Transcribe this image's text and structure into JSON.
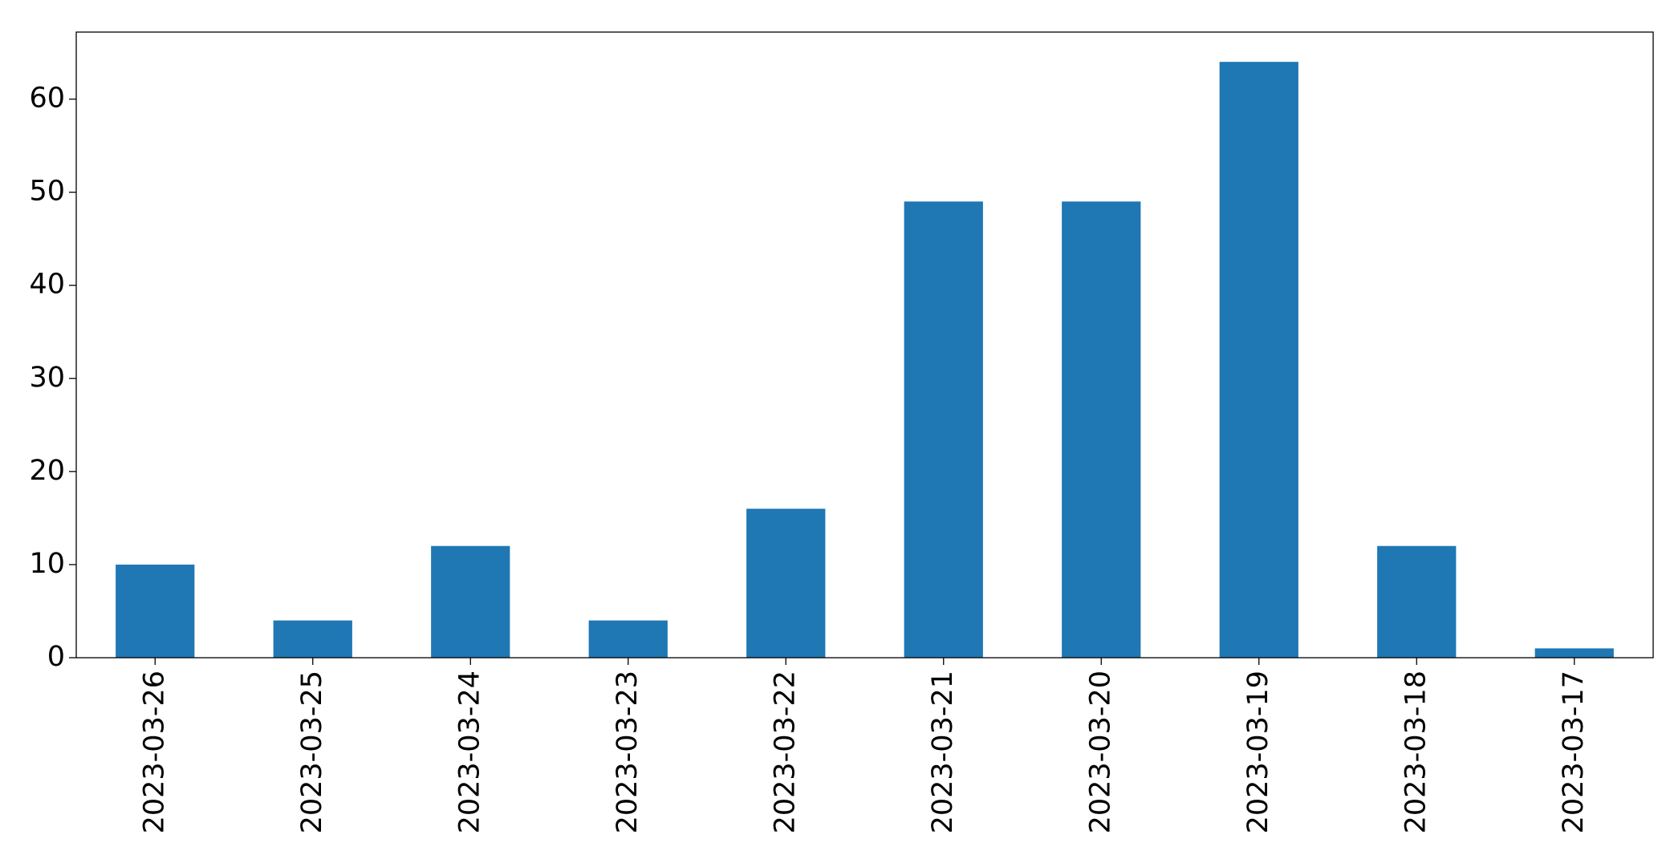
{
  "chart_data": {
    "type": "bar",
    "categories": [
      "2023-03-26",
      "2023-03-25",
      "2023-03-24",
      "2023-03-23",
      "2023-03-22",
      "2023-03-21",
      "2023-03-20",
      "2023-03-19",
      "2023-03-18",
      "2023-03-17"
    ],
    "values": [
      10,
      4,
      12,
      4,
      16,
      49,
      49,
      64,
      12,
      1
    ],
    "color": "#1f77b4",
    "ylim": [
      0,
      67.2
    ],
    "yticks": [
      0,
      10,
      20,
      30,
      40,
      50,
      60
    ],
    "grid": false
  }
}
